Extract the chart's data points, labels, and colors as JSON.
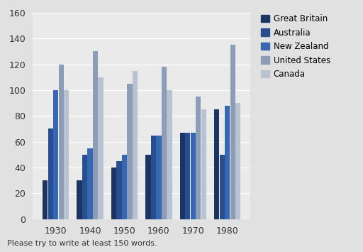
{
  "years": [
    1930,
    1940,
    1950,
    1960,
    1970,
    1980
  ],
  "series": {
    "Great Britain": [
      30,
      30,
      40,
      50,
      67,
      85
    ],
    "Australia": [
      70,
      50,
      45,
      65,
      67,
      50
    ],
    "New Zealand": [
      100,
      55,
      50,
      65,
      67,
      88
    ],
    "United States": [
      120,
      130,
      105,
      118,
      95,
      135
    ],
    "Canada": [
      100,
      110,
      115,
      100,
      85,
      90
    ]
  },
  "colors": {
    "Great Britain": "#1C3461",
    "Australia": "#284E8F",
    "New Zealand": "#3667B0",
    "United States": "#8D9DB8",
    "Canada": "#B8C2D0"
  },
  "ylim": [
    0,
    160
  ],
  "yticks": [
    0,
    20,
    40,
    60,
    80,
    100,
    120,
    140,
    160
  ],
  "legend_order": [
    "Great Britain",
    "Australia",
    "New Zealand",
    "United States",
    "Canada"
  ],
  "footer_text": "Please try to write at least 150 words.",
  "bg_color": "#E1E1E1",
  "plot_bg_color": "#EAEAEA"
}
